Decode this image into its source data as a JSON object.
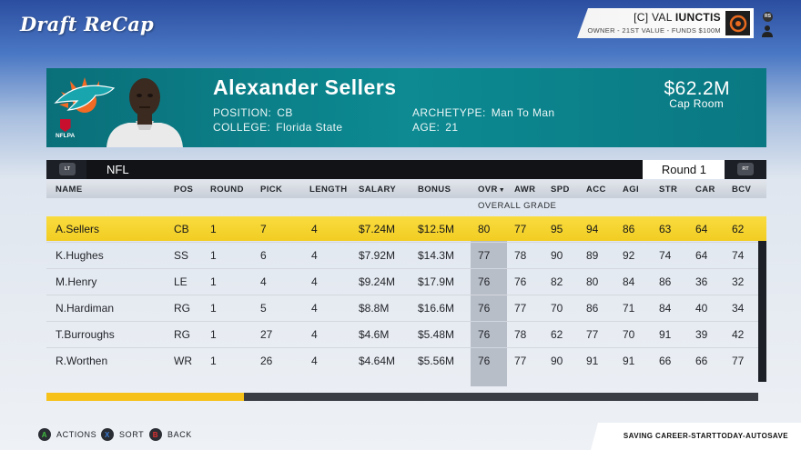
{
  "app": {
    "title": "Draft ReCap"
  },
  "user": {
    "prefix": "[C] VAL ",
    "name": "IUNCTIS",
    "subtitle": "OWNER - 21ST VALUE - FUNDS $100M",
    "rs_label": "RS"
  },
  "player": {
    "name": "Alexander Sellers",
    "position_label": "POSITION:",
    "position": "CB",
    "college_label": "COLLEGE:",
    "college": "Florida State",
    "archetype_label": "ARCHETYPE:",
    "archetype": "Man To Man",
    "age_label": "AGE:",
    "age": "21",
    "team_colors": {
      "aqua": "#008e97",
      "orange": "#f26a24"
    },
    "badge": "NFLPA"
  },
  "cap": {
    "amount": "$62.2M",
    "label": "Cap Room"
  },
  "league_bar": {
    "lt": "LT",
    "league": "NFL",
    "round": "Round 1",
    "rt": "RT"
  },
  "table": {
    "columns": [
      "NAME",
      "POS",
      "ROUND",
      "PICK",
      "LENGTH",
      "SALARY",
      "BONUS",
      "OVR",
      "AWR",
      "SPD",
      "ACC",
      "AGI",
      "STR",
      "CAR",
      "BCV"
    ],
    "sorted_by": "OVR",
    "sort_sub_label": "OVERALL GRADE",
    "rows": [
      [
        "A.Sellers",
        "CB",
        "1",
        "7",
        "4",
        "$7.24M",
        "$12.5M",
        "80",
        "77",
        "95",
        "94",
        "86",
        "63",
        "64",
        "62"
      ],
      [
        "K.Hughes",
        "SS",
        "1",
        "6",
        "4",
        "$7.92M",
        "$14.3M",
        "77",
        "78",
        "90",
        "89",
        "92",
        "74",
        "64",
        "74"
      ],
      [
        "M.Henry",
        "LE",
        "1",
        "4",
        "4",
        "$9.24M",
        "$17.9M",
        "76",
        "76",
        "82",
        "80",
        "84",
        "86",
        "36",
        "32"
      ],
      [
        "N.Hardiman",
        "RG",
        "1",
        "5",
        "4",
        "$8.8M",
        "$16.6M",
        "76",
        "77",
        "70",
        "86",
        "71",
        "84",
        "40",
        "34"
      ],
      [
        "T.Burroughs",
        "RG",
        "1",
        "27",
        "4",
        "$4.6M",
        "$5.48M",
        "76",
        "78",
        "62",
        "77",
        "70",
        "91",
        "39",
        "42"
      ],
      [
        "R.Worthen",
        "WR",
        "1",
        "26",
        "4",
        "$4.64M",
        "$5.56M",
        "76",
        "77",
        "90",
        "91",
        "91",
        "66",
        "66",
        "77"
      ]
    ],
    "selected_row": 0
  },
  "progress": {
    "fraction": 0.277,
    "fill_color": "#f6c21a"
  },
  "controls": [
    {
      "button": "A",
      "label": "ACTIONS",
      "color": "#3fbf3f"
    },
    {
      "button": "X",
      "label": "SORT",
      "color": "#3a7bd5"
    },
    {
      "button": "B",
      "label": "BACK",
      "color": "#e03131"
    }
  ],
  "autosave": "SAVING CAREER-STARTTODAY-AUTOSAVE"
}
